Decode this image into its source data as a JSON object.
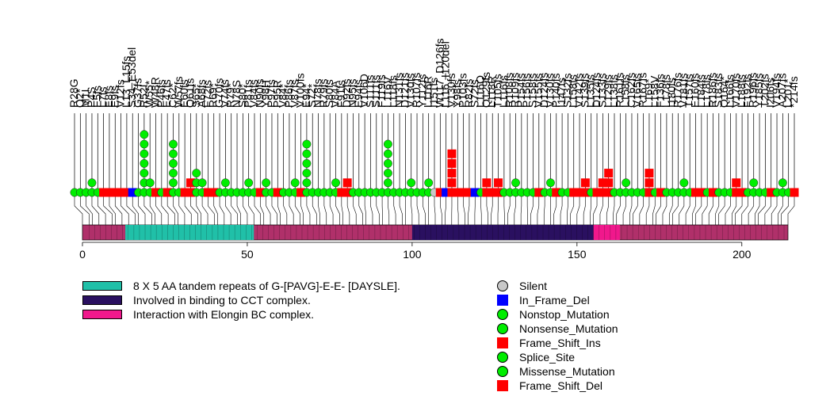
{
  "chart_data": {
    "type": "lollipop",
    "protein_length": 214,
    "axis": {
      "ticks": [
        0,
        50,
        100,
        150,
        200
      ]
    },
    "domains": [
      {
        "name": "8 X 5 AA tandem repeats of G-[PAVG]-E-E- [DAYSLE].",
        "start": 13,
        "end": 52,
        "color": "#20C0A8"
      },
      {
        "name": "Involved in binding to CCT complex.",
        "start": 100,
        "end": 155,
        "color": "#2A1060"
      },
      {
        "name": "Interaction with Elongin BC complex.",
        "start": 155,
        "end": 163,
        "color": "#F0188C"
      }
    ],
    "legend": {
      "domains": [
        {
          "label": "8 X 5 AA tandem repeats of G-[PAVG]-E-E- [DAYSLE].",
          "color": "#20C0A8"
        },
        {
          "label": "Involved in binding to CCT complex.",
          "color": "#2A1060"
        },
        {
          "label": "Interaction with Elongin BC complex.",
          "color": "#F0188C"
        }
      ],
      "mutations": [
        {
          "label": "Silent",
          "shape": "circle",
          "color": "#C8C8C8"
        },
        {
          "label": "In_Frame_Del",
          "shape": "square",
          "color": "#0000FF"
        },
        {
          "label": "Nonstop_Mutation",
          "shape": "circle",
          "color": "#00EE00"
        },
        {
          "label": "Nonsense_Mutation",
          "shape": "circle",
          "color": "#00EE00"
        },
        {
          "label": "Frame_Shift_Ins",
          "shape": "square",
          "color": "#FF0000"
        },
        {
          "label": "Splice_Site",
          "shape": "circle",
          "color": "#00EE00"
        },
        {
          "label": "Missense_Mutation",
          "shape": "circle",
          "color": "#00EE00"
        },
        {
          "label": "Frame_Shift_Del",
          "shape": "square",
          "color": "#FF0000"
        }
      ]
    },
    "mutations": [
      {
        "label": "R28G",
        "count": 1,
        "type": "Missense_Mutation"
      },
      {
        "label": "Q2*",
        "count": 1,
        "type": "Nonsense_Mutation"
      },
      {
        "label": "M1I",
        "count": 1,
        "type": "Missense_Mutation"
      },
      {
        "label": "P4S",
        "count": 2,
        "type": "Missense_Mutation"
      },
      {
        "label": "E5fs",
        "count": 1,
        "type": "Missense_Mutation"
      },
      {
        "label": "L7fs",
        "count": 1,
        "type": "Frame_Shift_Del"
      },
      {
        "label": "E8fs",
        "count": 1,
        "type": "Frame_Shift_Del"
      },
      {
        "label": "E9fs",
        "count": 1,
        "type": "Frame_Shift_Del"
      },
      {
        "label": "V12fs",
        "count": 1,
        "type": "Frame_Shift_Del"
      },
      {
        "label": "L13_L15fs",
        "count": 1,
        "type": "Frame_Shift_Del"
      },
      {
        "label": "S34_E53del",
        "count": 1,
        "type": "In_Frame_Del"
      },
      {
        "label": "G37fs",
        "count": 1,
        "type": "Missense_Mutation"
      },
      {
        "label": "R52I",
        "count": 7,
        "type": "Missense_Mutation"
      },
      {
        "label": "W55*",
        "count": 2,
        "type": "Nonsense_Mutation"
      },
      {
        "label": "W48R",
        "count": 1,
        "type": "Frame_Shift_Del"
      },
      {
        "label": "P46fs",
        "count": 1,
        "type": "Missense_Mutation"
      },
      {
        "label": "E47fs",
        "count": 1,
        "type": "Frame_Shift_Del"
      },
      {
        "label": "C62*",
        "count": 6,
        "type": "Nonsense_Mutation"
      },
      {
        "label": "W57fs",
        "count": 1,
        "type": "Missense_Mutation"
      },
      {
        "label": "E60fs",
        "count": 1,
        "type": "Frame_Shift_Del"
      },
      {
        "label": "Q61fs",
        "count": 2,
        "type": "Frame_Shift_Del"
      },
      {
        "label": "S65*",
        "count": 3,
        "type": "Missense_Mutation"
      },
      {
        "label": "A68fs",
        "count": 2,
        "type": "Missense_Mutation"
      },
      {
        "label": "F72fs",
        "count": 1,
        "type": "Frame_Shift_Del"
      },
      {
        "label": "R69*",
        "count": 1,
        "type": "Frame_Shift_Del"
      },
      {
        "label": "G70fs",
        "count": 1,
        "type": "Missense_Mutation"
      },
      {
        "label": "V74fs",
        "count": 2,
        "type": "Missense_Mutation"
      },
      {
        "label": "R79*",
        "count": 1,
        "type": "Missense_Mutation"
      },
      {
        "label": "N78S",
        "count": 1,
        "type": "Missense_Mutation"
      },
      {
        "label": "S80*",
        "count": 1,
        "type": "Missense_Mutation"
      },
      {
        "label": "P81fs",
        "count": 2,
        "type": "Missense_Mutation"
      },
      {
        "label": "V84fs",
        "count": 1,
        "type": "Missense_Mutation"
      },
      {
        "label": "N90fs",
        "count": 1,
        "type": "Frame_Shift_Del"
      },
      {
        "label": "Y98H",
        "count": 2,
        "type": "Missense_Mutation"
      },
      {
        "label": "P97fs",
        "count": 1,
        "type": "Missense_Mutation"
      },
      {
        "label": "P95R",
        "count": 1,
        "type": "Frame_Shift_Del"
      },
      {
        "label": "V84*",
        "count": 1,
        "type": "Missense_Mutation"
      },
      {
        "label": "P86fs",
        "count": 1,
        "type": "Missense_Mutation"
      },
      {
        "label": "V87fs",
        "count": 2,
        "type": "Missense_Mutation"
      },
      {
        "label": "V100fs",
        "count": 1,
        "type": "Frame_Shift_Del"
      },
      {
        "label": "E94*",
        "count": 6,
        "type": "Nonsense_Mutation"
      },
      {
        "label": "S72*",
        "count": 1,
        "type": "Missense_Mutation"
      },
      {
        "label": "N78fs",
        "count": 1,
        "type": "Missense_Mutation"
      },
      {
        "label": "R79fs",
        "count": 1,
        "type": "Missense_Mutation"
      },
      {
        "label": "S80fs",
        "count": 1,
        "type": "Missense_Mutation"
      },
      {
        "label": "V84A",
        "count": 2,
        "type": "Missense_Mutation"
      },
      {
        "label": "F91fs",
        "count": 1,
        "type": "Frame_Shift_Del"
      },
      {
        "label": "D92fs",
        "count": 2,
        "type": "Frame_Shift_Del"
      },
      {
        "label": "N95fs",
        "count": 1,
        "type": "Missense_Mutation"
      },
      {
        "label": "E94fs",
        "count": 1,
        "type": "Missense_Mutation"
      },
      {
        "label": "V106D",
        "count": 1,
        "type": "Missense_Mutation"
      },
      {
        "label": "S111fs",
        "count": 1,
        "type": "Missense_Mutation"
      },
      {
        "label": "S111fs",
        "count": 1,
        "type": "Missense_Mutation"
      },
      {
        "label": "F119fs",
        "count": 1,
        "type": "Missense_Mutation"
      },
      {
        "label": "L116V",
        "count": 6,
        "type": "Missense_Mutation"
      },
      {
        "label": "L118fs",
        "count": 1,
        "type": "Missense_Mutation"
      },
      {
        "label": "N131fs",
        "count": 1,
        "type": "Missense_Mutation"
      },
      {
        "label": "D121fs",
        "count": 1,
        "type": "Missense_Mutation"
      },
      {
        "label": "V130fs",
        "count": 2,
        "type": "Missense_Mutation"
      },
      {
        "label": "R107fs",
        "count": 1,
        "type": "Missense_Mutation"
      },
      {
        "label": "Y112fs",
        "count": 1,
        "type": "Missense_Mutation"
      },
      {
        "label": "L116R",
        "count": 2,
        "type": "Missense_Mutation"
      },
      {
        "label": "I151fs",
        "count": 1,
        "type": "Silent"
      },
      {
        "label": "W117_D126fs",
        "count": 1,
        "type": "Frame_Shift_Del"
      },
      {
        "label": "L116_I120del",
        "count": 1,
        "type": "In_Frame_Del"
      },
      {
        "label": "V130fs",
        "count": 5,
        "type": "Frame_Shift_Del"
      },
      {
        "label": "Y98fs",
        "count": 1,
        "type": "Frame_Shift_Del"
      },
      {
        "label": "P103fs",
        "count": 1,
        "type": "Frame_Shift_Del"
      },
      {
        "label": "R82fs",
        "count": 1,
        "type": "Frame_Shift_Del"
      },
      {
        "label": "S72fs",
        "count": 1,
        "type": "In_Frame_Del"
      },
      {
        "label": "L116Q",
        "count": 1,
        "type": "Missense_Mutation"
      },
      {
        "label": "Q129fs",
        "count": 2,
        "type": "Frame_Shift_Del"
      },
      {
        "label": "L118R",
        "count": 1,
        "type": "Frame_Shift_Del"
      },
      {
        "label": "T105fs",
        "count": 2,
        "type": "Frame_Shift_Del"
      },
      {
        "label": "L116fs",
        "count": 1,
        "type": "Missense_Mutation"
      },
      {
        "label": "R108fs",
        "count": 1,
        "type": "Missense_Mutation"
      },
      {
        "label": "R109fs",
        "count": 2,
        "type": "Missense_Mutation"
      },
      {
        "label": "P154fs",
        "count": 1,
        "type": "Missense_Mutation"
      },
      {
        "label": "P156fs",
        "count": 1,
        "type": "Missense_Mutation"
      },
      {
        "label": "S158fs",
        "count": 1,
        "type": "Missense_Mutation"
      },
      {
        "label": "V155fs",
        "count": 1,
        "type": "Frame_Shift_Del"
      },
      {
        "label": "D124fs",
        "count": 1,
        "type": "Missense_Mutation"
      },
      {
        "label": "V130fs",
        "count": 2,
        "type": "Missense_Mutation"
      },
      {
        "label": "P140fs",
        "count": 1,
        "type": "Frame_Shift_Del"
      },
      {
        "label": "I147fs",
        "count": 1,
        "type": "Missense_Mutation"
      },
      {
        "label": "S132fs",
        "count": 1,
        "type": "Missense_Mutation"
      },
      {
        "label": "L158fs",
        "count": 1,
        "type": "Frame_Shift_Del"
      },
      {
        "label": "V142fs",
        "count": 1,
        "type": "Frame_Shift_Del"
      },
      {
        "label": "S139fs",
        "count": 2,
        "type": "Frame_Shift_Del"
      },
      {
        "label": "L135fs",
        "count": 1,
        "type": "Missense_Mutation"
      },
      {
        "label": "D124fs",
        "count": 1,
        "type": "Frame_Shift_Del"
      },
      {
        "label": "S133fs",
        "count": 2,
        "type": "Frame_Shift_Del"
      },
      {
        "label": "L129fs",
        "count": 3,
        "type": "Frame_Shift_Del"
      },
      {
        "label": "L138fs",
        "count": 1,
        "type": "Missense_Mutation"
      },
      {
        "label": "R161fs",
        "count": 1,
        "type": "Missense_Mutation"
      },
      {
        "label": "L158fs",
        "count": 2,
        "type": "Missense_Mutation"
      },
      {
        "label": "C162fs",
        "count": 1,
        "type": "Missense_Mutation"
      },
      {
        "label": "V165fs",
        "count": 1,
        "type": "Missense_Mutation"
      },
      {
        "label": "R167fs",
        "count": 1,
        "type": "Missense_Mutation"
      },
      {
        "label": "L169*",
        "count": 3,
        "type": "Frame_Shift_Del"
      },
      {
        "label": "L158V",
        "count": 1,
        "type": "Missense_Mutation"
      },
      {
        "label": "F136fs",
        "count": 1,
        "type": "Frame_Shift_Del"
      },
      {
        "label": "L178fs",
        "count": 1,
        "type": "Missense_Mutation"
      },
      {
        "label": "I180fs",
        "count": 1,
        "type": "Missense_Mutation"
      },
      {
        "label": "R176fs",
        "count": 1,
        "type": "Missense_Mutation"
      },
      {
        "label": "V181fs",
        "count": 2,
        "type": "Missense_Mutation"
      },
      {
        "label": "T157fs",
        "count": 1,
        "type": "Missense_Mutation"
      },
      {
        "label": "E160fs",
        "count": 1,
        "type": "Frame_Shift_Del"
      },
      {
        "label": "L184fs",
        "count": 1,
        "type": "Frame_Shift_Del"
      },
      {
        "label": "L178fs",
        "count": 1,
        "type": "Missense_Mutation"
      },
      {
        "label": "R186fs",
        "count": 1,
        "type": "Frame_Shift_Del"
      },
      {
        "label": "S183fs",
        "count": 1,
        "type": "Missense_Mutation"
      },
      {
        "label": "Q164*",
        "count": 1,
        "type": "Missense_Mutation"
      },
      {
        "label": "L166fs",
        "count": 1,
        "type": "Missense_Mutation"
      },
      {
        "label": "V170fs",
        "count": 2,
        "type": "Frame_Shift_Del"
      },
      {
        "label": "L188fs",
        "count": 1,
        "type": "Frame_Shift_Del"
      },
      {
        "label": "F192fs",
        "count": 1,
        "type": "Missense_Mutation"
      },
      {
        "label": "R196fs",
        "count": 2,
        "type": "Missense_Mutation"
      },
      {
        "label": "Y185fs",
        "count": 1,
        "type": "Missense_Mutation"
      },
      {
        "label": "T202fs",
        "count": 1,
        "type": "Missense_Mutation"
      },
      {
        "label": "I206fs",
        "count": 1,
        "type": "Frame_Shift_Del"
      },
      {
        "label": "V194fs",
        "count": 1,
        "type": "Missense_Mutation"
      },
      {
        "label": "A207fs",
        "count": 2,
        "type": "Missense_Mutation"
      },
      {
        "label": "L201*",
        "count": 1,
        "type": "Missense_Mutation"
      },
      {
        "label": "*214fs",
        "count": 1,
        "type": "Frame_Shift_Del"
      }
    ],
    "tall_labels": [
      "W117_D126fs",
      "L116_I120del",
      "S34_E53del"
    ]
  }
}
